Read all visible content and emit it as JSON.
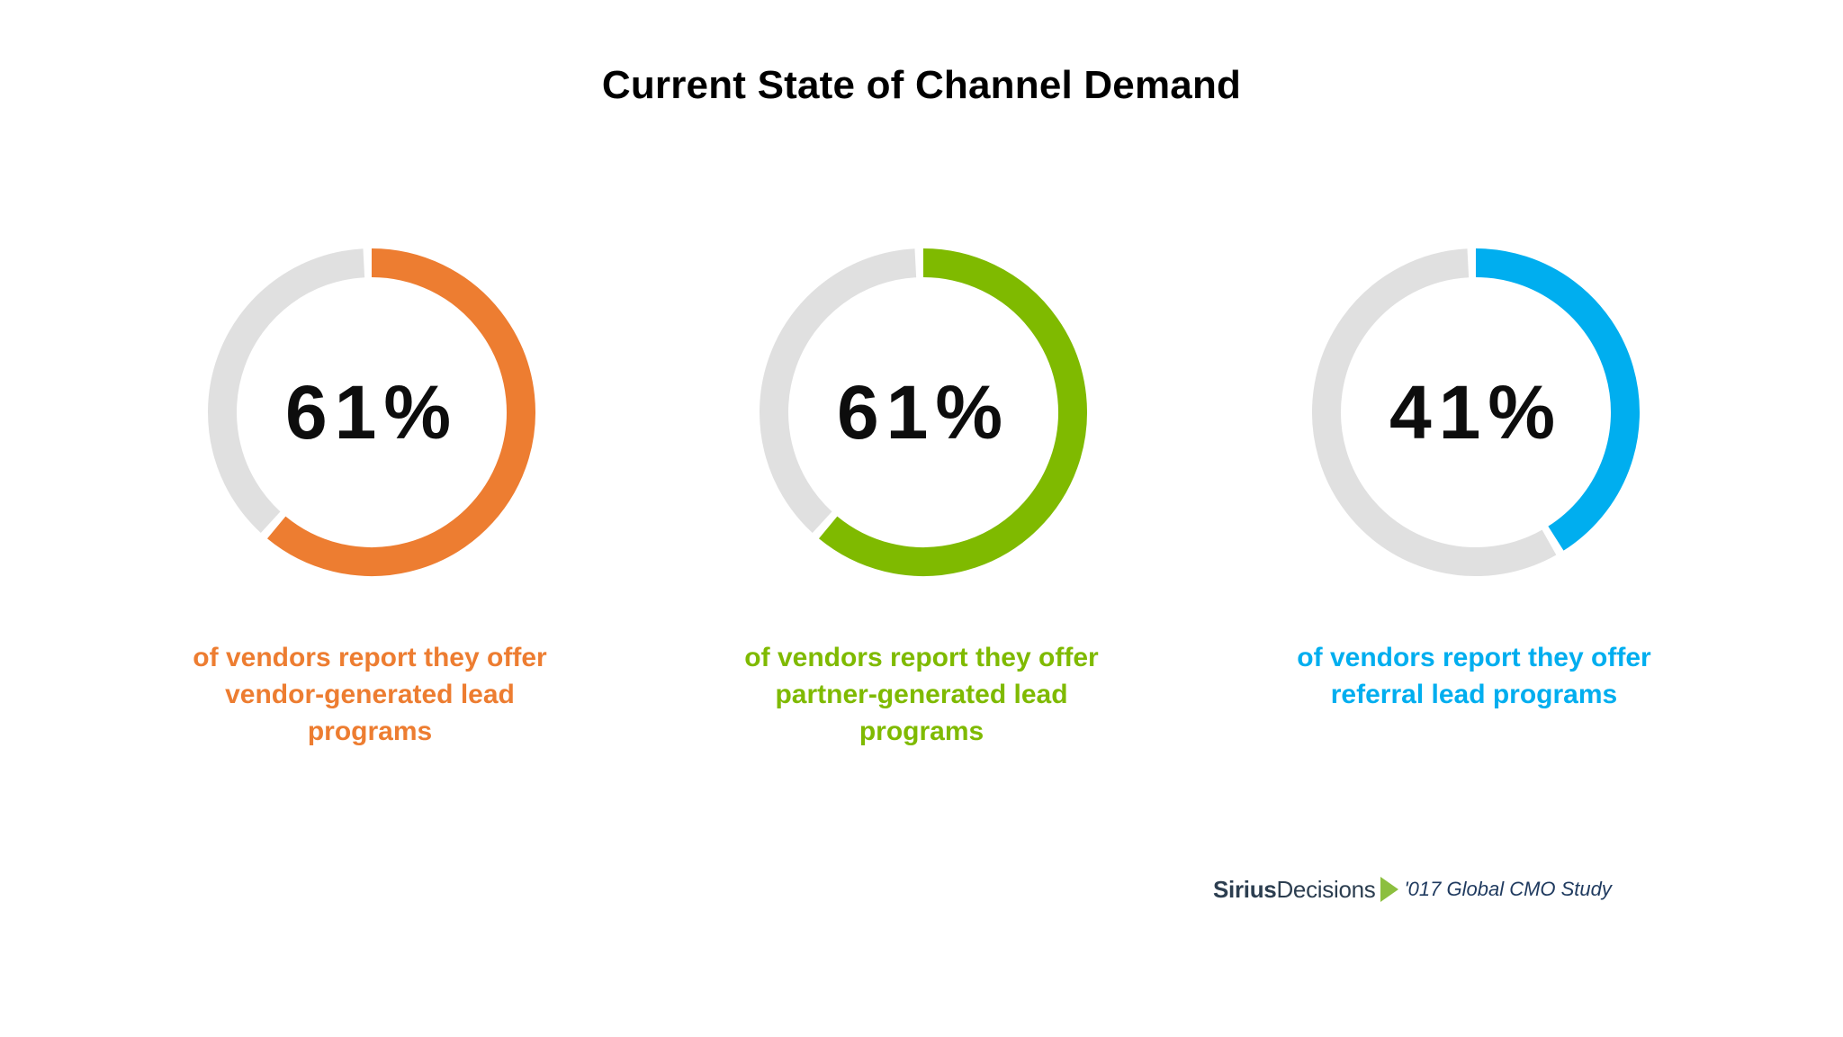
{
  "title": "Current State of Channel Demand",
  "chart_data": {
    "type": "donut",
    "title": "Current State of Channel Demand",
    "track_color": "#e0e0e0",
    "items": [
      {
        "value": 61,
        "label": "61%",
        "color": "#ed7d31",
        "caption": [
          "of vendors report they offer",
          "vendor-generated lead",
          "programs"
        ]
      },
      {
        "value": 61,
        "label": "61%",
        "color": "#7fba00",
        "caption": [
          "of vendors report they offer",
          "partner-generated lead",
          "programs"
        ]
      },
      {
        "value": 41,
        "label": "41%",
        "color": "#00aeef",
        "caption": [
          "of vendors report they offer",
          "referral lead programs"
        ]
      }
    ]
  },
  "source": {
    "logo_part1": "Sirius",
    "logo_part2": "Decisions",
    "logo_arrow_color": "#8cbf3f",
    "text": "'017 Global CMO Study"
  }
}
